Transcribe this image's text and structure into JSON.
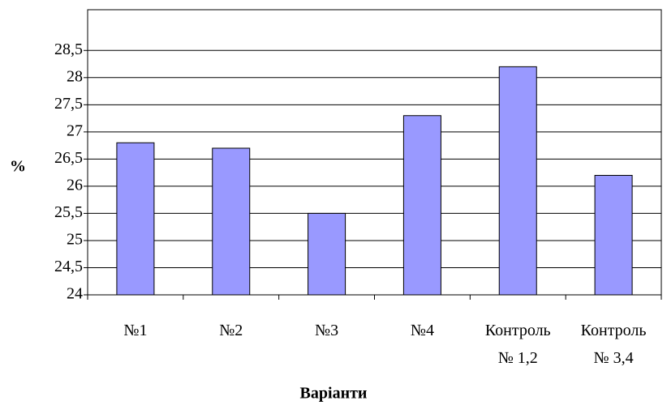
{
  "chart_data": {
    "type": "bar",
    "y_label": "%",
    "x_label": "Варіанти",
    "categories": [
      "№1",
      "№2",
      "№3",
      "№4",
      "Контроль\n№ 1,2",
      "Контроль\n№ 3,4"
    ],
    "values": [
      26.8,
      26.7,
      25.5,
      27.3,
      28.2,
      26.2
    ],
    "color": "#9999ff",
    "ylim": [
      24,
      29.25
    ],
    "yticks": [
      24,
      {
        "value": 24.5,
        "label": "24,5"
      },
      25,
      {
        "value": 25.5,
        "label": "25,5"
      },
      26,
      {
        "value": 26.5,
        "label": "26,5"
      },
      27,
      {
        "value": 27.5,
        "label": "27,5"
      },
      28,
      {
        "value": 28.5,
        "label": "28,5"
      }
    ],
    "grid": true
  }
}
